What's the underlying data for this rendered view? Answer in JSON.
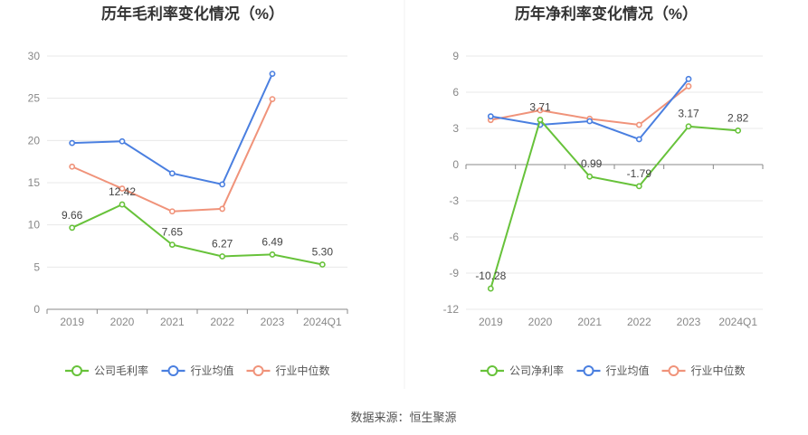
{
  "source": "数据来源：恒生聚源",
  "colors": {
    "company": "#67c23a",
    "industry_avg": "#4a7fe0",
    "industry_median": "#f0937a",
    "grid": "#e8e8e8",
    "axis": "#888888"
  },
  "chart_data": [
    {
      "type": "line",
      "title": "历年毛利率变化情况（%）",
      "categories": [
        "2019",
        "2020",
        "2021",
        "2022",
        "2023",
        "2024Q1"
      ],
      "ylim": [
        0,
        30
      ],
      "yticks": [
        0,
        5,
        10,
        15,
        20,
        25,
        30
      ],
      "ytick_labels": [
        "0",
        "5",
        "10",
        "15",
        "20",
        "25",
        "30"
      ],
      "grid": true,
      "legend_position": "bottom",
      "series": [
        {
          "name": "公司毛利率",
          "key": "company",
          "values": [
            9.66,
            12.42,
            7.65,
            6.27,
            6.49,
            5.3
          ],
          "labels": [
            "9.66",
            "12.42",
            "7.65",
            "6.27",
            "6.49",
            "5.30"
          ]
        },
        {
          "name": "行业均值",
          "key": "industry_avg",
          "values": [
            19.7,
            19.9,
            16.1,
            14.8,
            27.9,
            null
          ]
        },
        {
          "name": "行业中位数",
          "key": "industry_median",
          "values": [
            16.9,
            14.3,
            11.6,
            11.9,
            24.9,
            null
          ]
        }
      ]
    },
    {
      "type": "line",
      "title": "历年净利率变化情况（%）",
      "categories": [
        "2019",
        "2020",
        "2021",
        "2022",
        "2023",
        "2024Q1"
      ],
      "ylim": [
        -12,
        9
      ],
      "yticks": [
        -12,
        -9,
        -6,
        -3,
        0,
        3,
        6,
        9
      ],
      "ytick_labels": [
        "-12",
        "-9",
        "-6",
        "-3",
        "0",
        "3",
        "6",
        "9"
      ],
      "grid": true,
      "legend_position": "bottom",
      "series": [
        {
          "name": "公司净利率",
          "key": "company",
          "values": [
            -10.28,
            3.71,
            -0.99,
            -1.79,
            3.17,
            2.82
          ],
          "labels": [
            "-10.28",
            "3.71",
            "-0.99",
            "-1.79",
            "3.17",
            "2.82"
          ]
        },
        {
          "name": "行业均值",
          "key": "industry_avg",
          "values": [
            4.0,
            3.3,
            3.6,
            2.1,
            7.1,
            null
          ]
        },
        {
          "name": "行业中位数",
          "key": "industry_median",
          "values": [
            3.7,
            4.5,
            3.8,
            3.3,
            6.5,
            null
          ]
        }
      ]
    }
  ]
}
